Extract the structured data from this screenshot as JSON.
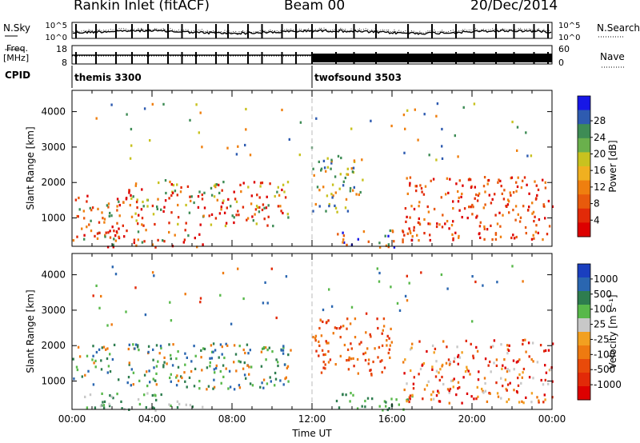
{
  "header": {
    "station": "Rankin Inlet (fitACF)",
    "beam": "Beam 00",
    "date": "20/Dec/2014"
  },
  "top_strip": {
    "nsky_label": "N.Sky",
    "nsearch_label": "N.Search",
    "freq_label_1": "Freq.",
    "freq_label_2": "[MHz]",
    "nave_label": "Nave",
    "cpid_label": "CPID",
    "left_ticks_noise": [
      "10^5",
      "10^0"
    ],
    "right_ticks_noise": [
      "10^5",
      "10^0"
    ],
    "left_ticks_freq": [
      "18",
      "8"
    ],
    "right_ticks_nave": [
      "60",
      "0"
    ],
    "cpid_segments": [
      {
        "name": "themis 3300",
        "start_hour": 0,
        "end_hour": 12
      },
      {
        "name": "twofsound 3503",
        "start_hour": 12,
        "end_hour": 24
      }
    ]
  },
  "chart_data": [
    {
      "type": "heatmap",
      "title": "Power",
      "ylabel": "Slant Range [km]",
      "xlabel": "",
      "xlim": [
        0,
        24
      ],
      "ylim": [
        200,
        4600
      ],
      "y_ticks": [
        1000,
        2000,
        3000,
        4000
      ],
      "colorbar": {
        "label": "Power [dB]",
        "ticks": [
          "4",
          "8",
          "12",
          "16",
          "20",
          "24",
          "28"
        ],
        "colors": [
          "#1717e6",
          "#2e5bb0",
          "#3e8c55",
          "#6ab04c",
          "#c8c21f",
          "#f0b020",
          "#ef7f0f",
          "#e85a0c",
          "#e22a08",
          "#dd0000"
        ]
      },
      "scatter_regions": [
        {
          "t0": 0.0,
          "t1": 2.5,
          "r0": 400,
          "r1": 1700,
          "values": [
            "#e22a08",
            "#e85a0c",
            "#ef7f0f",
            "#dd0000",
            "#3e8c55"
          ]
        },
        {
          "t0": 2.5,
          "t1": 11.0,
          "r0": 800,
          "r1": 2100,
          "values": [
            "#e22a08",
            "#ef7f0f",
            "#c8c21f",
            "#3e8c55",
            "#dd0000"
          ]
        },
        {
          "t0": 1.0,
          "t1": 6.5,
          "r0": 200,
          "r1": 700,
          "values": [
            "#e22a08",
            "#ef7f0f",
            "#3e8c55",
            "#dd0000"
          ]
        },
        {
          "t0": 12.0,
          "t1": 14.5,
          "r0": 1200,
          "r1": 2800,
          "values": [
            "#2e5bb0",
            "#3e8c55",
            "#c8c21f",
            "#ef7f0f"
          ]
        },
        {
          "t0": 13.0,
          "t1": 17.0,
          "r0": 200,
          "r1": 700,
          "values": [
            "#e85a0c",
            "#ef7f0f",
            "#3e8c55",
            "#1717e6"
          ]
        },
        {
          "t0": 16.5,
          "t1": 24.0,
          "r0": 400,
          "r1": 2200,
          "values": [
            "#dd0000",
            "#e22a08",
            "#e85a0c",
            "#ef7f0f"
          ]
        },
        {
          "t0": 1.0,
          "t1": 23.0,
          "r0": 2600,
          "r1": 4300,
          "values": [
            "#2e5bb0",
            "#3e8c55",
            "#c8c21f",
            "#ef7f0f"
          ]
        }
      ]
    },
    {
      "type": "heatmap",
      "title": "Velocity",
      "ylabel": "Slant Range [km]",
      "xlabel": "Time UT",
      "xlim": [
        0,
        24
      ],
      "ylim": [
        200,
        4600
      ],
      "x_ticks": [
        "00:00",
        "04:00",
        "08:00",
        "12:00",
        "16:00",
        "20:00",
        "00:00"
      ],
      "y_ticks": [
        1000,
        2000,
        3000,
        4000
      ],
      "colorbar": {
        "label": "Velocity [m s^-1]",
        "ticks": [
          "1000",
          "500",
          "100",
          "25",
          "-25",
          "-100",
          "-500",
          "-1000"
        ],
        "colors": [
          "#1a3fbf",
          "#2a66b0",
          "#2e7d4f",
          "#58b84a",
          "#c8c8c8",
          "#f2a020",
          "#ee7a10",
          "#e84a0a",
          "#e22a08",
          "#dd0000"
        ]
      },
      "scatter_regions": [
        {
          "t0": 0.0,
          "t1": 11.0,
          "r0": 800,
          "r1": 2100,
          "values": [
            "#2e7d4f",
            "#58b84a",
            "#2a66b0",
            "#ee7a10"
          ]
        },
        {
          "t0": 0.5,
          "t1": 6.5,
          "r0": 200,
          "r1": 700,
          "values": [
            "#c8c8c8",
            "#58b84a",
            "#2e7d4f"
          ]
        },
        {
          "t0": 12.0,
          "t1": 16.0,
          "r0": 1200,
          "r1": 2800,
          "values": [
            "#e84a0a",
            "#e22a08",
            "#ee7a10"
          ]
        },
        {
          "t0": 13.0,
          "t1": 17.0,
          "r0": 200,
          "r1": 700,
          "values": [
            "#2e7d4f",
            "#58b84a"
          ]
        },
        {
          "t0": 16.5,
          "t1": 24.0,
          "r0": 400,
          "r1": 2200,
          "values": [
            "#e22a08",
            "#ee7a10",
            "#f2a020",
            "#c8c8c8",
            "#dd0000"
          ]
        },
        {
          "t0": 1.0,
          "t1": 23.0,
          "r0": 2600,
          "r1": 4300,
          "values": [
            "#2a66b0",
            "#58b84a",
            "#ee7a10",
            "#e22a08"
          ]
        }
      ]
    }
  ]
}
